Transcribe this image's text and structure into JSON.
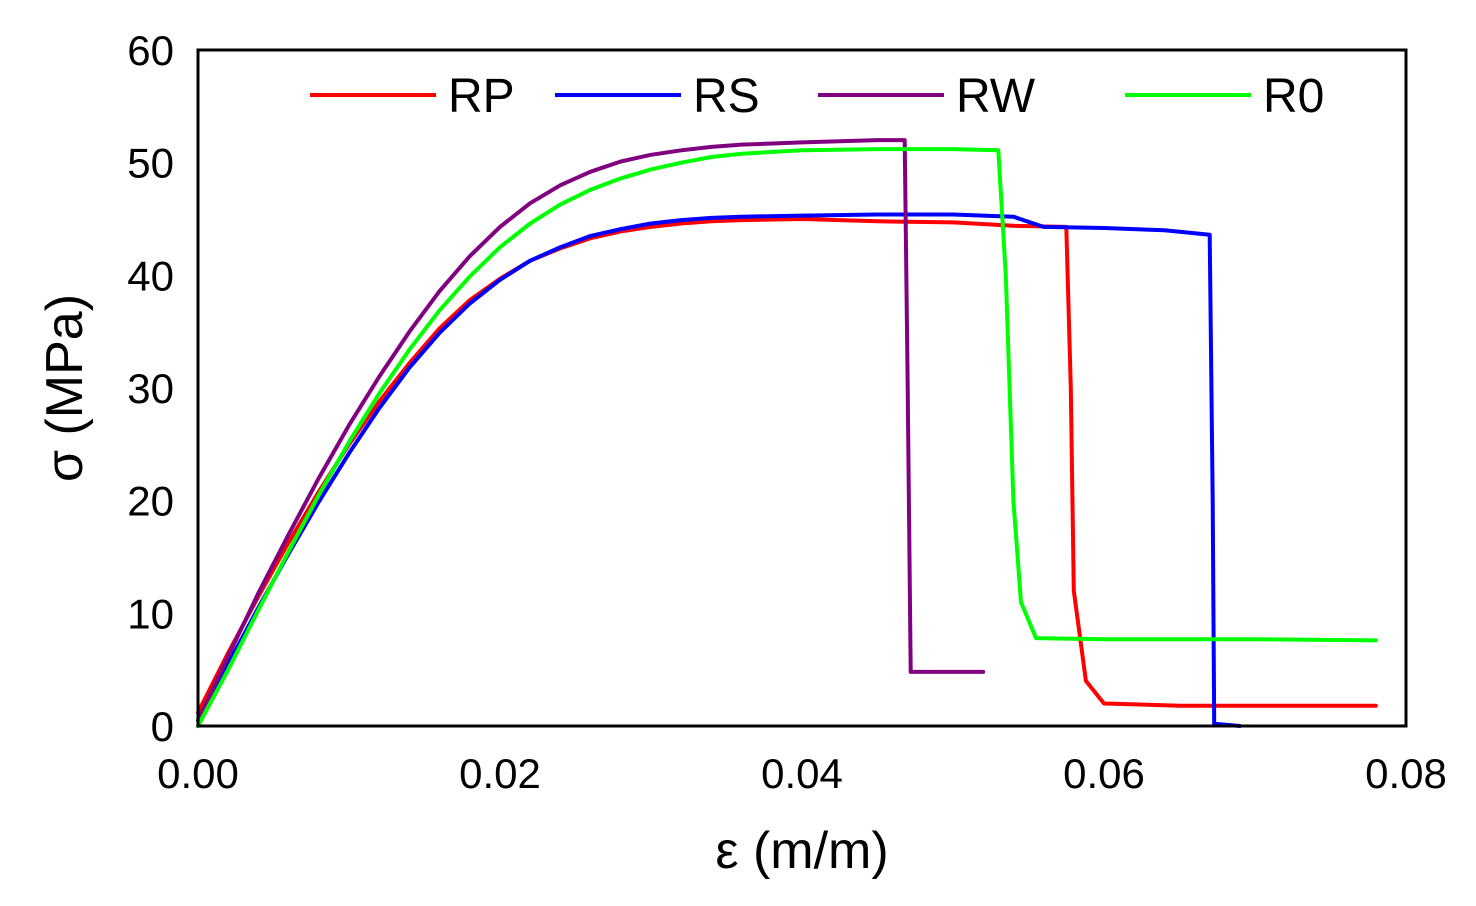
{
  "chart_data": {
    "type": "line",
    "title": "",
    "xlabel": "ε (m/m)",
    "ylabel": "σ (MPa)",
    "xlim": [
      0,
      0.08
    ],
    "ylim": [
      0,
      60
    ],
    "xticks": [
      "0.00",
      "0.02",
      "0.04",
      "0.06",
      "0.08"
    ],
    "xtick_values": [
      0,
      0.02,
      0.04,
      0.06,
      0.08
    ],
    "yticks": [
      "0",
      "10",
      "20",
      "30",
      "40",
      "50",
      "60"
    ],
    "ytick_values": [
      0,
      10,
      20,
      30,
      40,
      50,
      60
    ],
    "grid": false,
    "legend_position": "top",
    "series": [
      {
        "name": "RP",
        "color": "#ff0000",
        "points": [
          [
            0,
            1.2
          ],
          [
            0.002,
            6.5
          ],
          [
            0.004,
            11.5
          ],
          [
            0.006,
            16.3
          ],
          [
            0.008,
            20.8
          ],
          [
            0.01,
            25
          ],
          [
            0.012,
            28.8
          ],
          [
            0.014,
            32.2
          ],
          [
            0.016,
            35.3
          ],
          [
            0.018,
            37.8
          ],
          [
            0.02,
            39.7
          ],
          [
            0.022,
            41.3
          ],
          [
            0.024,
            42.4
          ],
          [
            0.026,
            43.3
          ],
          [
            0.028,
            43.9
          ],
          [
            0.03,
            44.3
          ],
          [
            0.032,
            44.6
          ],
          [
            0.034,
            44.8
          ],
          [
            0.036,
            44.9
          ],
          [
            0.04,
            45.0
          ],
          [
            0.045,
            44.8
          ],
          [
            0.05,
            44.7
          ],
          [
            0.054,
            44.4
          ],
          [
            0.0575,
            44.3
          ],
          [
            0.0578,
            30
          ],
          [
            0.058,
            12
          ],
          [
            0.0588,
            4
          ],
          [
            0.06,
            2.0
          ],
          [
            0.065,
            1.8
          ],
          [
            0.07,
            1.8
          ],
          [
            0.078,
            1.8
          ]
        ]
      },
      {
        "name": "RS",
        "color": "#0000ff",
        "points": [
          [
            0,
            0
          ],
          [
            0.002,
            5.5
          ],
          [
            0.004,
            10.5
          ],
          [
            0.006,
            15.3
          ],
          [
            0.008,
            19.9
          ],
          [
            0.01,
            24.2
          ],
          [
            0.012,
            28.2
          ],
          [
            0.014,
            31.8
          ],
          [
            0.016,
            34.9
          ],
          [
            0.018,
            37.5
          ],
          [
            0.02,
            39.6
          ],
          [
            0.022,
            41.3
          ],
          [
            0.024,
            42.5
          ],
          [
            0.026,
            43.5
          ],
          [
            0.028,
            44.1
          ],
          [
            0.03,
            44.6
          ],
          [
            0.032,
            44.9
          ],
          [
            0.034,
            45.1
          ],
          [
            0.036,
            45.2
          ],
          [
            0.04,
            45.3
          ],
          [
            0.045,
            45.4
          ],
          [
            0.05,
            45.4
          ],
          [
            0.054,
            45.2
          ],
          [
            0.056,
            44.3
          ],
          [
            0.06,
            44.2
          ],
          [
            0.064,
            44.0
          ],
          [
            0.067,
            43.6
          ],
          [
            0.0672,
            20
          ],
          [
            0.0673,
            0.2
          ],
          [
            0.069,
            0
          ]
        ]
      },
      {
        "name": "RW",
        "color": "#800080",
        "points": [
          [
            0,
            0.5
          ],
          [
            0.002,
            6.2
          ],
          [
            0.004,
            11.8
          ],
          [
            0.006,
            17.0
          ],
          [
            0.008,
            22.0
          ],
          [
            0.01,
            26.7
          ],
          [
            0.012,
            31.0
          ],
          [
            0.014,
            35.0
          ],
          [
            0.016,
            38.6
          ],
          [
            0.018,
            41.7
          ],
          [
            0.02,
            44.3
          ],
          [
            0.022,
            46.4
          ],
          [
            0.024,
            48.0
          ],
          [
            0.026,
            49.2
          ],
          [
            0.028,
            50.1
          ],
          [
            0.03,
            50.7
          ],
          [
            0.032,
            51.1
          ],
          [
            0.034,
            51.4
          ],
          [
            0.036,
            51.6
          ],
          [
            0.04,
            51.8
          ],
          [
            0.045,
            52.0
          ],
          [
            0.0468,
            52.0
          ],
          [
            0.047,
            30
          ],
          [
            0.0472,
            4.8
          ],
          [
            0.05,
            4.8
          ],
          [
            0.052,
            4.8
          ]
        ]
      },
      {
        "name": "R0",
        "color": "#00ff00",
        "points": [
          [
            0,
            0
          ],
          [
            0.002,
            5.0
          ],
          [
            0.004,
            10.3
          ],
          [
            0.006,
            15.5
          ],
          [
            0.008,
            20.5
          ],
          [
            0.01,
            25.2
          ],
          [
            0.012,
            29.5
          ],
          [
            0.014,
            33.4
          ],
          [
            0.016,
            36.9
          ],
          [
            0.018,
            39.9
          ],
          [
            0.02,
            42.5
          ],
          [
            0.022,
            44.6
          ],
          [
            0.024,
            46.3
          ],
          [
            0.026,
            47.6
          ],
          [
            0.028,
            48.6
          ],
          [
            0.03,
            49.4
          ],
          [
            0.032,
            50.0
          ],
          [
            0.034,
            50.5
          ],
          [
            0.036,
            50.8
          ],
          [
            0.04,
            51.1
          ],
          [
            0.045,
            51.2
          ],
          [
            0.05,
            51.2
          ],
          [
            0.053,
            51.1
          ],
          [
            0.0535,
            40
          ],
          [
            0.054,
            20
          ],
          [
            0.0545,
            11
          ],
          [
            0.0555,
            7.8
          ],
          [
            0.06,
            7.7
          ],
          [
            0.07,
            7.7
          ],
          [
            0.078,
            7.6
          ]
        ]
      }
    ]
  }
}
